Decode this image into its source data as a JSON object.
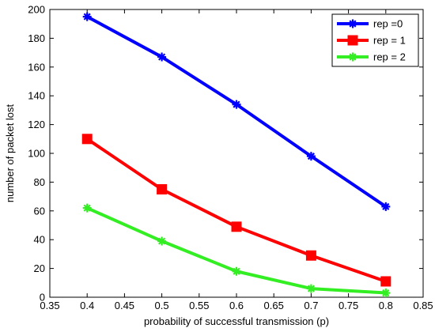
{
  "chart_data": {
    "type": "line",
    "title": "",
    "xlabel": "probability of successful transmission (p)",
    "ylabel": "number of packet lost",
    "xlim": [
      0.35,
      0.85
    ],
    "ylim": [
      0,
      200
    ],
    "xticks": [
      "0.35",
      "0.4",
      "0.45",
      "0.5",
      "0.55",
      "0.6",
      "0.65",
      "0.7",
      "0.75",
      "0.8",
      "0.85"
    ],
    "yticks": [
      "0",
      "20",
      "40",
      "60",
      "80",
      "100",
      "120",
      "140",
      "160",
      "180",
      "200"
    ],
    "grid": false,
    "legend_position": "top-right",
    "x": [
      0.4,
      0.5,
      0.6,
      0.7,
      0.8
    ],
    "series": [
      {
        "name": "rep =0",
        "values": [
          195,
          167,
          134,
          98,
          63
        ],
        "color": "#0000ff",
        "marker": "star"
      },
      {
        "name": "rep = 1",
        "values": [
          110,
          75,
          49,
          29,
          11
        ],
        "color": "#ff0000",
        "marker": "square"
      },
      {
        "name": "rep = 2",
        "values": [
          62,
          39,
          18,
          6,
          3
        ],
        "color": "#33ee22",
        "marker": "star"
      }
    ]
  }
}
